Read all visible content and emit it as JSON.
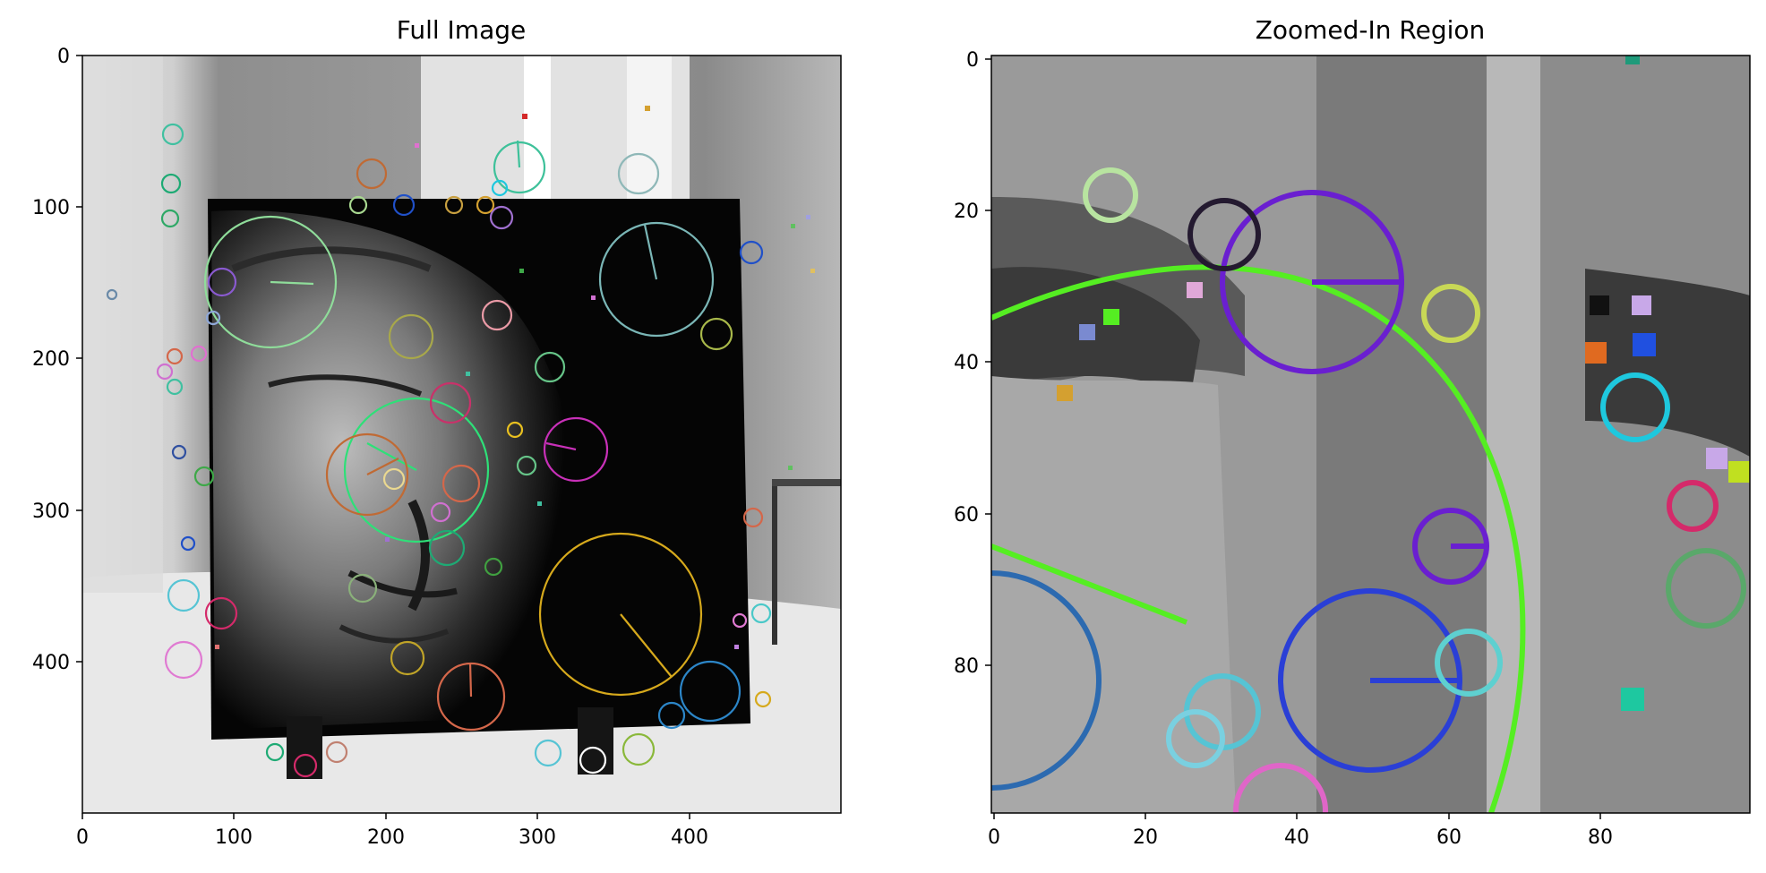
{
  "figure": {
    "panels": [
      {
        "title": "Full Image",
        "x_ticks": [
          "0",
          "100",
          "200",
          "300",
          "400"
        ],
        "y_ticks": [
          "0",
          "100",
          "200",
          "300",
          "400"
        ],
        "x_range": [
          0,
          500
        ],
        "y_range": [
          0,
          500
        ],
        "image_content": "grayscale photo of a Buddha face sculpture with colored keypoint circles"
      },
      {
        "title": "Zoomed-In Region",
        "x_ticks": [
          "0",
          "20",
          "40",
          "60",
          "80"
        ],
        "y_ticks": [
          "0",
          "20",
          "40",
          "60",
          "80"
        ],
        "x_range": [
          0,
          100
        ],
        "y_range": [
          0,
          100
        ],
        "image_content": "pixelated zoom of keypoints near the eye/nose region"
      }
    ]
  },
  "colors": {
    "keypoint_green": "#55ee22",
    "keypoint_purple": "#6a1fd0",
    "keypoint_blue": "#2a3fd6",
    "keypoint_cyan": "#1ec8de",
    "keypoint_gold": "#d6a91c",
    "keypoint_magenta": "#d22fc4"
  }
}
